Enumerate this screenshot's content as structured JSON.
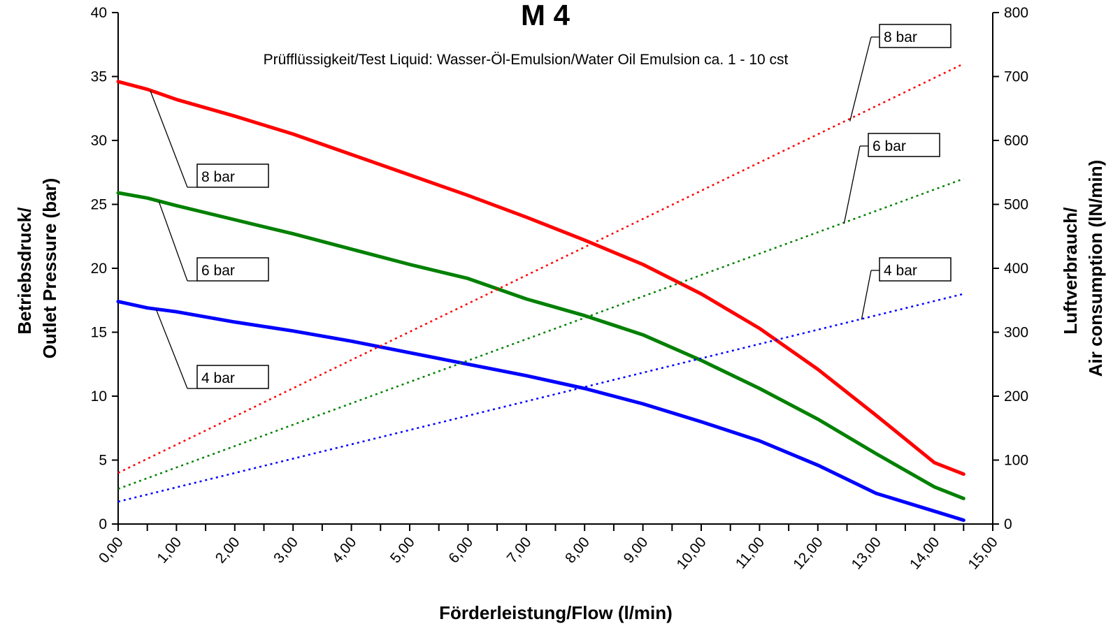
{
  "chart_data": {
    "type": "line",
    "title": "M 4",
    "subtitle": "Prüfflüssigkeit/Test Liquid: Wasser-Öl-Emulsion/Water Oil Emulsion ca. 1 - 10 cst",
    "xlabel": "Förderleistung/Flow (l/min)",
    "ylabel_left_lines": [
      "Betriebsdruck/",
      "Outlet Pressure (bar)"
    ],
    "ylabel_right_lines": [
      "Luftverbrauch/",
      "Air consumption (lN/min)"
    ],
    "xlim": [
      0,
      15
    ],
    "ylim_left": [
      0,
      40
    ],
    "ylim_right": [
      0,
      800
    ],
    "x_ticks": [
      "0,00",
      "1,00",
      "2,00",
      "3,00",
      "4,00",
      "5,00",
      "6,00",
      "7,00",
      "8,00",
      "9,00",
      "10,00",
      "11,00",
      "12,00",
      "13,00",
      "14,00",
      "15,00"
    ],
    "y_ticks_left": [
      "0",
      "5",
      "10",
      "15",
      "20",
      "25",
      "30",
      "35",
      "40"
    ],
    "y_ticks_right": [
      "0",
      "100",
      "200",
      "300",
      "400",
      "500",
      "600",
      "700",
      "800"
    ],
    "x_tick_values": [
      0,
      1,
      2,
      3,
      4,
      5,
      6,
      7,
      8,
      9,
      10,
      11,
      12,
      13,
      14,
      15
    ],
    "y_tick_values_left": [
      0,
      5,
      10,
      15,
      20,
      25,
      30,
      35,
      40
    ],
    "y_tick_values_right": [
      0,
      100,
      200,
      300,
      400,
      500,
      600,
      700,
      800
    ],
    "grid": false,
    "series": [
      {
        "name": "8 bar",
        "axis": "left",
        "style": "solid",
        "color": "#ff0000",
        "x": [
          0,
          0.5,
          1,
          2,
          3,
          4,
          5,
          6,
          7,
          8,
          9,
          10,
          11,
          12,
          13,
          14,
          14.5
        ],
        "y": [
          34.6,
          34.0,
          33.2,
          31.9,
          30.5,
          28.9,
          27.3,
          25.7,
          24.0,
          22.2,
          20.3,
          18.0,
          15.3,
          12.1,
          8.5,
          4.8,
          3.9
        ]
      },
      {
        "name": "6 bar",
        "axis": "left",
        "style": "solid",
        "color": "#008000",
        "x": [
          0,
          0.5,
          1,
          2,
          3,
          4,
          5,
          6,
          7,
          8,
          9,
          10,
          11,
          12,
          13,
          14,
          14.5
        ],
        "y": [
          25.9,
          25.5,
          24.9,
          23.8,
          22.7,
          21.5,
          20.3,
          19.2,
          17.6,
          16.3,
          14.8,
          12.8,
          10.6,
          8.2,
          5.5,
          2.9,
          2.0
        ]
      },
      {
        "name": "4 bar",
        "axis": "left",
        "style": "solid",
        "color": "#0000ff",
        "x": [
          0,
          0.5,
          1,
          2,
          3,
          4,
          5,
          6,
          7,
          8,
          9,
          10,
          11,
          12,
          13,
          14,
          14.5
        ],
        "y": [
          17.4,
          16.9,
          16.6,
          15.8,
          15.1,
          14.3,
          13.4,
          12.5,
          11.6,
          10.6,
          9.4,
          8.0,
          6.5,
          4.6,
          2.4,
          1.0,
          0.3
        ]
      },
      {
        "name": "8 bar",
        "axis": "right",
        "style": "dotted",
        "color": "#ff0000",
        "x": [
          0,
          14.5
        ],
        "y": [
          80,
          720
        ]
      },
      {
        "name": "6 bar",
        "axis": "right",
        "style": "dotted",
        "color": "#008000",
        "x": [
          0,
          14.5
        ],
        "y": [
          55,
          540
        ]
      },
      {
        "name": "4 bar",
        "axis": "right",
        "style": "dotted",
        "color": "#0000ff",
        "x": [
          0,
          14.5
        ],
        "y": [
          35,
          360
        ]
      }
    ],
    "callouts": [
      {
        "text": "8 bar",
        "target_axis": "left",
        "target": [
          0.55,
          33.9
        ]
      },
      {
        "text": "6 bar",
        "target_axis": "left",
        "target": [
          0.7,
          25.2
        ]
      },
      {
        "text": "4 bar",
        "target_axis": "left",
        "target": [
          0.65,
          16.8
        ]
      },
      {
        "text": "8 bar",
        "target_axis": "right",
        "target": [
          12.55,
          630
        ]
      },
      {
        "text": "6 bar",
        "target_axis": "right",
        "target": [
          12.45,
          470
        ]
      },
      {
        "text": "4 bar",
        "target_axis": "right",
        "target": [
          12.75,
          320
        ]
      }
    ]
  }
}
